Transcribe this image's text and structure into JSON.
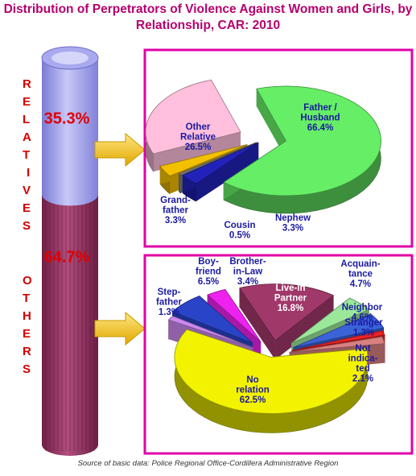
{
  "title_line1": "Distribution of Perpetrators of Violence Against Women and Girls, by",
  "title_line2": "Relationship, CAR: 2010",
  "source": "Source of basic data: Police Regional Office-Cordillera Administrative Region",
  "colors": {
    "title": "#b5006e",
    "frame": "#e000a8",
    "accent_red": "#d40000",
    "arrow": "#f5c400",
    "cylinder_top": "#aaaaee",
    "cylinder_bottom": "#9a3a64"
  },
  "chart_data": [
    {
      "type": "bar",
      "title": "",
      "categories": [
        "RELATIVES",
        "OTHERS"
      ],
      "values": [
        35.3,
        64.7
      ],
      "value_labels": [
        "35.3%",
        "64.7%"
      ],
      "stacked": true,
      "colors": [
        "#aaaaee",
        "#9a3a64"
      ]
    },
    {
      "type": "pie",
      "title": "",
      "group": "RELATIVES",
      "slices": [
        {
          "label": "Father / Husband",
          "value": 66.4,
          "value_label": "66.4%",
          "color": "#66ee66"
        },
        {
          "label": "Nephew",
          "value": 3.3,
          "value_label": "3.3%",
          "color": "#2222bb"
        },
        {
          "label": "Cousin",
          "value": 0.5,
          "value_label": "0.5%",
          "color": "#7f7f7f"
        },
        {
          "label": "Grand-father",
          "value": 3.3,
          "value_label": "3.3%",
          "color": "#f3c000"
        },
        {
          "label": "Other Relative",
          "value": 26.5,
          "value_label": "26.5%",
          "color": "#ffbfdd"
        }
      ]
    },
    {
      "type": "pie",
      "title": "",
      "group": "OTHERS",
      "slices": [
        {
          "label": "Live-in Partner",
          "value": 16.8,
          "value_label": "16.8%",
          "color": "#a0386a"
        },
        {
          "label": "Acquain-tance",
          "value": 4.7,
          "value_label": "4.7%",
          "color": "#9be89b"
        },
        {
          "label": "Neighbor",
          "value": 4.6,
          "value_label": "4.6%",
          "color": "#3b63d8"
        },
        {
          "label": "Stranger",
          "value": 1.3,
          "value_label": "1.3%",
          "color": "#ee2222"
        },
        {
          "label": "Not indica-ted",
          "value": 2.1,
          "value_label": "2.1%",
          "color": "#d98080"
        },
        {
          "label": "No relation",
          "value": 62.5,
          "value_label": "62.5%",
          "color": "#f3f300"
        },
        {
          "label": "Step-father",
          "value": 1.3,
          "value_label": "1.3%",
          "color": "#cc88ee"
        },
        {
          "label": "Boy-friend",
          "value": 6.5,
          "value_label": "6.5%",
          "color": "#2a44c8"
        },
        {
          "label": "Brother-in-Law",
          "value": 3.4,
          "value_label": "3.4%",
          "color": "#ee22ee"
        }
      ]
    }
  ]
}
